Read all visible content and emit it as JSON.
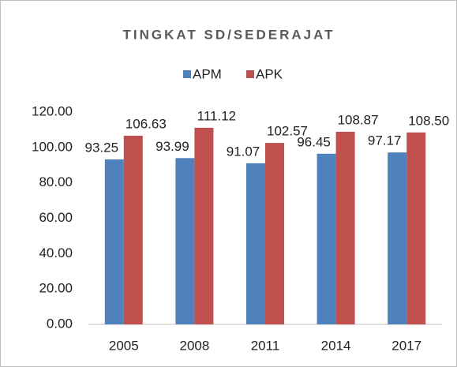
{
  "chart_data": {
    "type": "bar",
    "title": "TINGKAT SD/SEDERAJAT",
    "categories": [
      "2005",
      "2008",
      "2011",
      "2014",
      "2017"
    ],
    "series": [
      {
        "name": "APM",
        "color": "#4f81bd",
        "values": [
          93.25,
          93.99,
          91.07,
          96.45,
          97.17
        ],
        "value_labels": [
          "93.25",
          "93.99",
          "91.07",
          "96.45",
          "97.17"
        ]
      },
      {
        "name": "APK",
        "color": "#c0504d",
        "values": [
          106.63,
          111.12,
          102.57,
          108.87,
          108.5
        ],
        "value_labels": [
          "106.63",
          "111.12",
          "102.57",
          "108.87",
          "108.50"
        ]
      }
    ],
    "ylim": [
      0,
      120
    ],
    "yticks": [
      {
        "value": 0,
        "label": "0.00"
      },
      {
        "value": 20,
        "label": "20.00"
      },
      {
        "value": 40,
        "label": "40.00"
      },
      {
        "value": 60,
        "label": "60.00"
      },
      {
        "value": 80,
        "label": "80.00"
      },
      {
        "value": 100,
        "label": "100.00"
      },
      {
        "value": 120,
        "label": "120.00"
      }
    ],
    "legend": "top"
  }
}
